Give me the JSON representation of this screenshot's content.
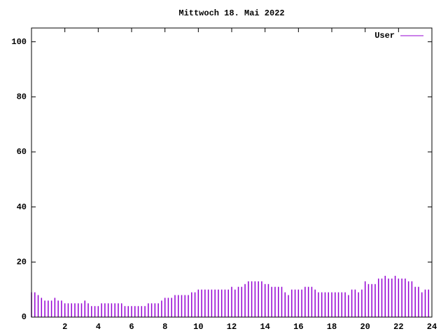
{
  "chart_data": {
    "type": "impulse",
    "title": "Mittwoch 18. Mai 2022",
    "x": [
      0,
      0.2,
      0.4,
      0.6,
      0.8,
      1,
      1.2,
      1.4,
      1.6,
      1.8,
      2,
      2.2,
      2.4,
      2.6,
      2.8,
      3,
      3.2,
      3.4,
      3.6,
      3.8,
      4,
      4.2,
      4.4,
      4.6,
      4.8,
      5,
      5.2,
      5.4,
      5.6,
      5.8,
      6,
      6.2,
      6.4,
      6.6,
      6.8,
      7,
      7.2,
      7.4,
      7.6,
      7.8,
      8,
      8.2,
      8.4,
      8.6,
      8.8,
      9,
      9.2,
      9.4,
      9.6,
      9.8,
      10,
      10.2,
      10.4,
      10.6,
      10.8,
      11,
      11.2,
      11.4,
      11.6,
      11.8,
      12,
      12.2,
      12.4,
      12.6,
      12.8,
      13,
      13.2,
      13.4,
      13.6,
      13.8,
      14,
      14.2,
      14.4,
      14.6,
      14.8,
      15,
      15.2,
      15.4,
      15.6,
      15.8,
      16,
      16.2,
      16.4,
      16.6,
      16.8,
      17,
      17.2,
      17.4,
      17.6,
      17.8,
      18,
      18.2,
      18.4,
      18.6,
      18.8,
      19,
      19.2,
      19.4,
      19.6,
      19.8,
      20,
      20.2,
      20.4,
      20.6,
      20.8,
      21,
      21.2,
      21.4,
      21.6,
      21.8,
      22,
      22.2,
      22.4,
      22.6,
      22.8,
      23,
      23.2,
      23.4,
      23.6,
      23.8
    ],
    "series": [
      {
        "name": "User",
        "color": "#9400d3",
        "values": [
          9,
          9,
          8,
          7,
          6,
          6,
          6,
          7,
          6,
          6,
          5,
          5,
          5,
          5,
          5,
          5,
          6,
          5,
          4,
          4,
          4,
          5,
          5,
          5,
          5,
          5,
          5,
          5,
          4,
          4,
          4,
          4,
          4,
          4,
          4,
          5,
          5,
          5,
          5,
          6,
          7,
          7,
          7,
          8,
          8,
          8,
          8,
          8,
          9,
          9,
          10,
          10,
          10,
          10,
          10,
          10,
          10,
          10,
          10,
          10,
          11,
          10,
          11,
          11,
          12,
          13,
          13,
          13,
          13,
          13,
          12,
          12,
          11,
          11,
          11,
          11,
          9,
          8,
          10,
          10,
          10,
          10,
          11,
          11,
          11,
          10,
          9,
          9,
          9,
          9,
          9,
          9,
          9,
          9,
          9,
          8,
          10,
          10,
          9,
          10,
          13,
          12,
          12,
          12,
          14,
          14,
          15,
          14,
          14,
          15,
          14,
          14,
          14,
          13,
          13,
          11,
          11,
          9,
          10,
          10
        ]
      }
    ],
    "xlim": [
      0,
      24
    ],
    "xticks": [
      2,
      4,
      6,
      8,
      10,
      12,
      14,
      16,
      18,
      20,
      22,
      24
    ],
    "ylim": [
      0,
      105
    ],
    "yticks": [
      0,
      20,
      40,
      60,
      80,
      100
    ],
    "legend": "top-right",
    "grid": false
  }
}
